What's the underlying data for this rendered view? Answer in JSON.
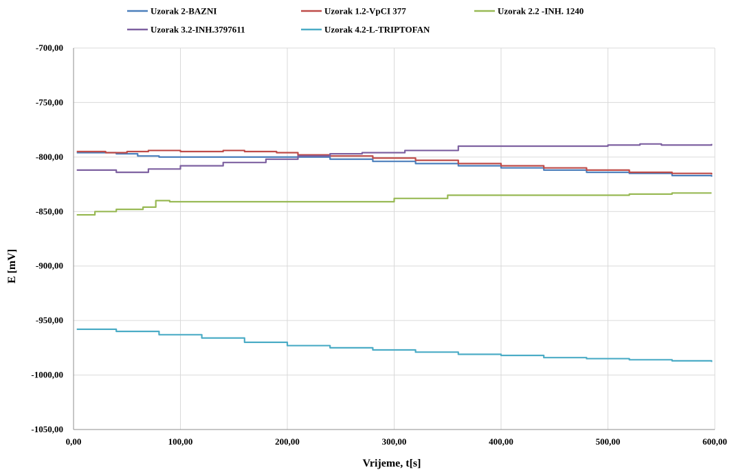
{
  "chart_data": {
    "type": "line",
    "xlabel": "Vrijeme, t[s]",
    "ylabel": "E [mV]",
    "xlim": [
      0,
      600
    ],
    "ylim": [
      -1050,
      -700
    ],
    "x_ticks": [
      "0,00",
      "100,00",
      "200,00",
      "300,00",
      "400,00",
      "500,00",
      "600,00"
    ],
    "y_ticks": [
      "-700,00",
      "-750,00",
      "-800,00",
      "-850,00",
      "-900,00",
      "-950,00",
      "-1000,00",
      "-1050,00"
    ],
    "grid": true,
    "legend_position": "top",
    "series": [
      {
        "name": "Uzorak 2-BAZNI",
        "color": "#4a7ebb",
        "x": [
          3,
          40,
          60,
          80,
          120,
          160,
          200,
          240,
          280,
          320,
          360,
          400,
          440,
          480,
          520,
          560,
          597
        ],
        "y": [
          -796,
          -797,
          -799,
          -800,
          -800,
          -800,
          -800,
          -802,
          -804,
          -806,
          -808,
          -810,
          -812,
          -814,
          -815,
          -817,
          -818
        ]
      },
      {
        "name": "Uzorak 1.2-VpCI 377",
        "color": "#be4b48",
        "x": [
          3,
          30,
          50,
          70,
          100,
          140,
          160,
          190,
          210,
          240,
          280,
          320,
          360,
          400,
          440,
          480,
          520,
          560,
          597
        ],
        "y": [
          -795,
          -796,
          -795,
          -794,
          -795,
          -794,
          -795,
          -796,
          -798,
          -799,
          -801,
          -803,
          -806,
          -808,
          -810,
          -812,
          -814,
          -815,
          -816
        ]
      },
      {
        "name": "Uzorak 2.2 -INH. 1240",
        "color": "#98b954",
        "x": [
          3,
          20,
          40,
          65,
          77,
          90,
          150,
          190,
          220,
          260,
          300,
          350,
          400,
          480,
          520,
          560,
          597
        ],
        "y": [
          -853,
          -850,
          -848,
          -846,
          -840,
          -841,
          -841,
          -841,
          -841,
          -841,
          -838,
          -835,
          -835,
          -835,
          -834,
          -833,
          -833
        ]
      },
      {
        "name": "Uzorak 3.2-INH.3797611",
        "color": "#7d60a0",
        "x": [
          3,
          40,
          70,
          100,
          140,
          180,
          210,
          240,
          270,
          310,
          360,
          410,
          450,
          500,
          530,
          550,
          597
        ],
        "y": [
          -812,
          -814,
          -811,
          -808,
          -805,
          -802,
          -799,
          -797,
          -796,
          -794,
          -790,
          -790,
          -790,
          -789,
          -788,
          -789,
          -788
        ]
      },
      {
        "name": "Uzorak 4.2-L-TRIPTOFAN",
        "color": "#4bacc6",
        "x": [
          3,
          40,
          80,
          120,
          160,
          200,
          240,
          280,
          320,
          360,
          400,
          440,
          480,
          520,
          560,
          597
        ],
        "y": [
          -958,
          -960,
          -963,
          -966,
          -970,
          -973,
          -975,
          -977,
          -979,
          -981,
          -982,
          -984,
          -985,
          -986,
          -987,
          -988
        ]
      }
    ]
  }
}
